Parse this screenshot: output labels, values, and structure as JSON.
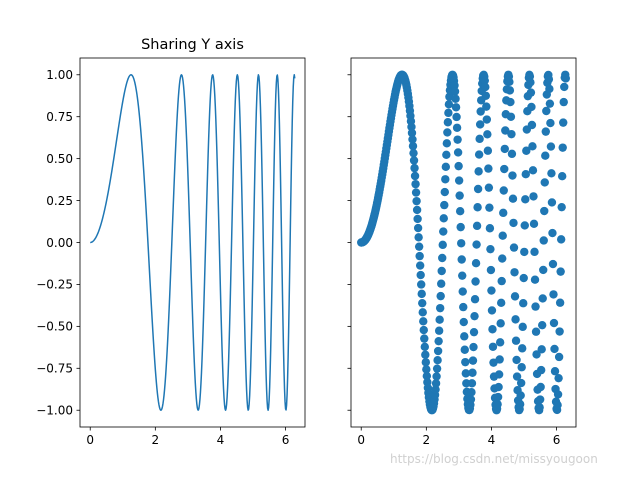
{
  "chart_data": [
    {
      "type": "line",
      "title": "Sharing Y axis",
      "function": "y = sin(x^2)",
      "x_range": [
        0,
        6.2832
      ],
      "xlim": [
        -0.314,
        6.597
      ],
      "ylim": [
        -1.1,
        1.1
      ],
      "x_ticks": [
        0,
        2,
        4,
        6
      ],
      "x_tick_labels": [
        "0",
        "2",
        "4",
        "6"
      ],
      "y_ticks": [
        1.0,
        0.75,
        0.5,
        0.25,
        0.0,
        -0.25,
        -0.5,
        -0.75,
        -1.0
      ],
      "y_tick_labels": [
        "1.00",
        "0.75",
        "0.50",
        "0.25",
        "0.00",
        "−0.25",
        "−0.50",
        "−0.75",
        "−1.00"
      ],
      "series_color": "#1f77b4",
      "sample_count": 400
    },
    {
      "type": "scatter",
      "title": "",
      "function": "y = sin(x^2)",
      "x_range": [
        0,
        6.2832
      ],
      "xlim": [
        -0.314,
        6.597
      ],
      "ylim": [
        -1.1,
        1.1
      ],
      "x_ticks": [
        0,
        2,
        4,
        6
      ],
      "x_tick_labels": [
        "0",
        "2",
        "4",
        "6"
      ],
      "y_ticks": [
        1.0,
        0.75,
        0.5,
        0.25,
        0.0,
        -0.25,
        -0.5,
        -0.75,
        -1.0
      ],
      "shared_y": true,
      "series_color": "#1f77b4",
      "sample_count": 400
    }
  ],
  "watermark": "https://blog.csdn.net/missyougoon"
}
